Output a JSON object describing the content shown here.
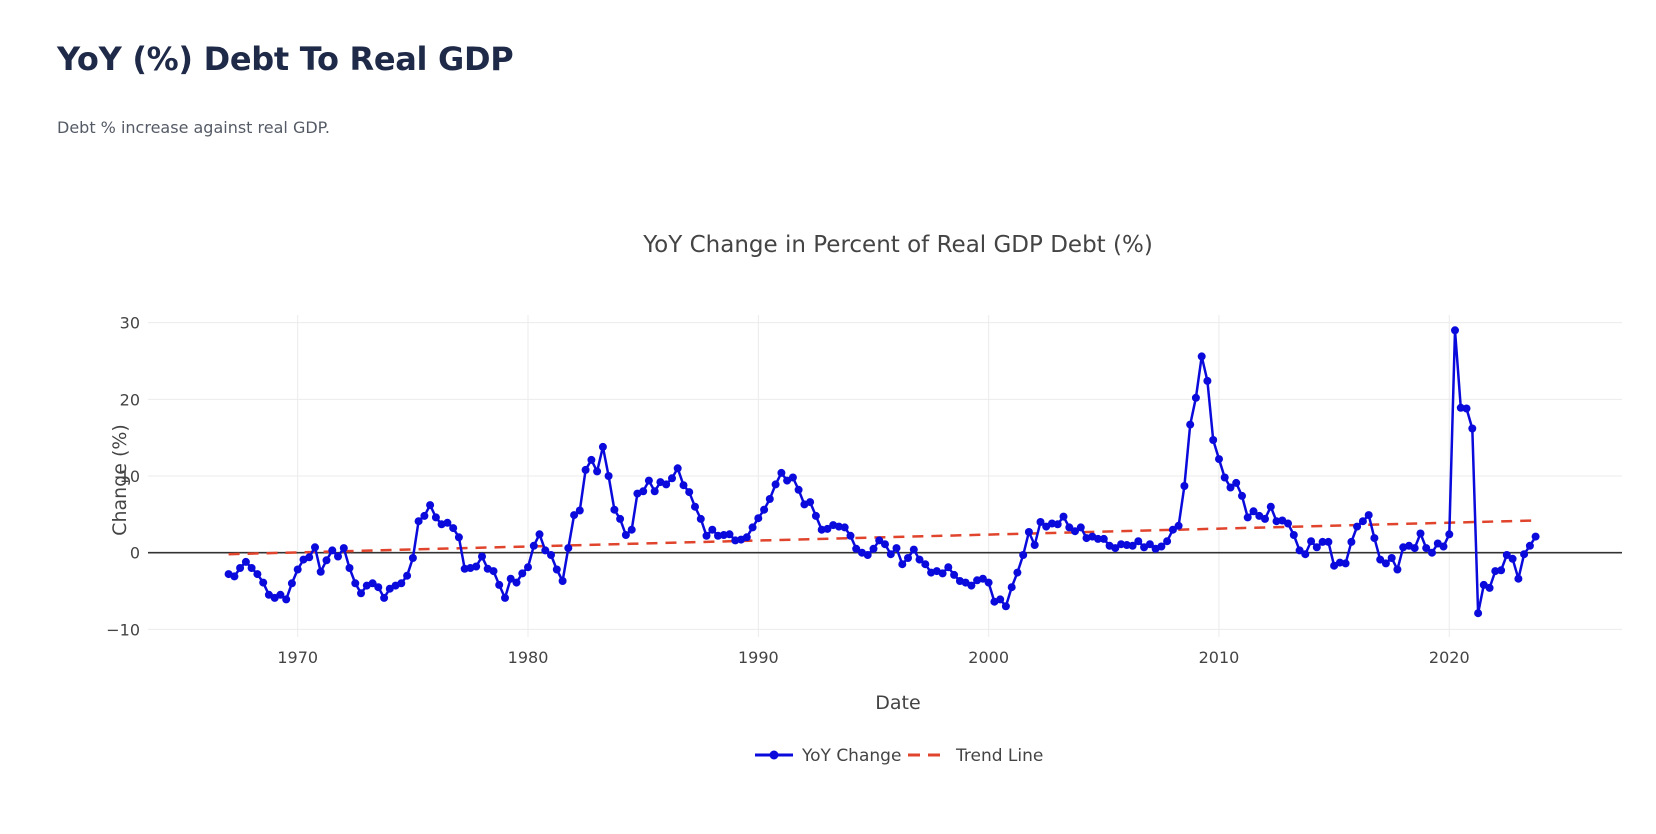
{
  "page": {
    "title": "YoY (%) Debt To Real GDP",
    "subtitle": "Debt % increase against real GDP."
  },
  "colors": {
    "series": "#0a0adc",
    "trend": "#e0442c",
    "grid": "#ebebeb",
    "zero_line": "#333333",
    "text": "#444444"
  },
  "chart_data": {
    "type": "line",
    "title": "YoY Change in Percent of Real GDP Debt (%)",
    "xlabel": "Date",
    "ylabel": "Change (%)",
    "xlim": [
      1963.5,
      2027.5
    ],
    "ylim": [
      -11,
      31
    ],
    "xticks": [
      1970,
      1980,
      1990,
      2000,
      2010,
      2020
    ],
    "yticks": [
      -10,
      0,
      10,
      20,
      30
    ],
    "grid": true,
    "legend_position": "bottom-center",
    "series": [
      {
        "name": "YoY Change",
        "style": "line+markers",
        "x": [
          1967.0,
          1967.25,
          1967.5,
          1967.75,
          1968.0,
          1968.25,
          1968.5,
          1968.75,
          1969.0,
          1969.25,
          1969.5,
          1969.75,
          1970.0,
          1970.25,
          1970.5,
          1970.75,
          1971.0,
          1971.25,
          1971.5,
          1971.75,
          1972.0,
          1972.25,
          1972.5,
          1972.75,
          1973.0,
          1973.25,
          1973.5,
          1973.75,
          1974.0,
          1974.25,
          1974.5,
          1974.75,
          1975.0,
          1975.25,
          1975.5,
          1975.75,
          1976.0,
          1976.25,
          1976.5,
          1976.75,
          1977.0,
          1977.25,
          1977.5,
          1977.75,
          1978.0,
          1978.25,
          1978.5,
          1978.75,
          1979.0,
          1979.25,
          1979.5,
          1979.75,
          1980.0,
          1980.25,
          1980.5,
          1980.75,
          1981.0,
          1981.25,
          1981.5,
          1981.75,
          1982.0,
          1982.25,
          1982.5,
          1982.75,
          1983.0,
          1983.25,
          1983.5,
          1983.75,
          1984.0,
          1984.25,
          1984.5,
          1984.75,
          1985.0,
          1985.25,
          1985.5,
          1985.75,
          1986.0,
          1986.25,
          1986.5,
          1986.75,
          1987.0,
          1987.25,
          1987.5,
          1987.75,
          1988.0,
          1988.25,
          1988.5,
          1988.75,
          1989.0,
          1989.25,
          1989.5,
          1989.75,
          1990.0,
          1990.25,
          1990.5,
          1990.75,
          1991.0,
          1991.25,
          1991.5,
          1991.75,
          1992.0,
          1992.25,
          1992.5,
          1992.75,
          1993.0,
          1993.25,
          1993.5,
          1993.75,
          1994.0,
          1994.25,
          1994.5,
          1994.75,
          1995.0,
          1995.25,
          1995.5,
          1995.75,
          1996.0,
          1996.25,
          1996.5,
          1996.75,
          1997.0,
          1997.25,
          1997.5,
          1997.75,
          1998.0,
          1998.25,
          1998.5,
          1998.75,
          1999.0,
          1999.25,
          1999.5,
          1999.75,
          2000.0,
          2000.25,
          2000.5,
          2000.75,
          2001.0,
          2001.25,
          2001.5,
          2001.75,
          2002.0,
          2002.25,
          2002.5,
          2002.75,
          2003.0,
          2003.25,
          2003.5,
          2003.75,
          2004.0,
          2004.25,
          2004.5,
          2004.75,
          2005.0,
          2005.25,
          2005.5,
          2005.75,
          2006.0,
          2006.25,
          2006.5,
          2006.75,
          2007.0,
          2007.25,
          2007.5,
          2007.75,
          2008.0,
          2008.25,
          2008.5,
          2008.75,
          2009.0,
          2009.25,
          2009.5,
          2009.75,
          2010.0,
          2010.25,
          2010.5,
          2010.75,
          2011.0,
          2011.25,
          2011.5,
          2011.75,
          2012.0,
          2012.25,
          2012.5,
          2012.75,
          2013.0,
          2013.25,
          2013.5,
          2013.75,
          2014.0,
          2014.25,
          2014.5,
          2014.75,
          2015.0,
          2015.25,
          2015.5,
          2015.75,
          2016.0,
          2016.25,
          2016.5,
          2016.75,
          2017.0,
          2017.25,
          2017.5,
          2017.75,
          2018.0,
          2018.25,
          2018.5,
          2018.75,
          2019.0,
          2019.25,
          2019.5,
          2019.75,
          2020.0,
          2020.25,
          2020.5,
          2020.75,
          2021.0,
          2021.25,
          2021.5,
          2021.75,
          2022.0,
          2022.25,
          2022.5,
          2022.75,
          2023.0,
          2023.25,
          2023.5,
          2023.75
        ],
        "y": [
          -2.8,
          -3.1,
          -2.0,
          -1.2,
          -2.0,
          -2.8,
          -3.9,
          -5.5,
          -5.9,
          -5.5,
          -6.1,
          -4.0,
          -2.2,
          -0.9,
          -0.6,
          0.7,
          -2.5,
          -1.0,
          0.3,
          -0.5,
          0.6,
          -2.0,
          -4.0,
          -5.3,
          -4.3,
          -4.0,
          -4.5,
          -5.9,
          -4.7,
          -4.3,
          -4.0,
          -3.0,
          -0.7,
          4.1,
          4.8,
          6.2,
          4.6,
          3.7,
          3.9,
          3.2,
          2.0,
          -2.1,
          -2.0,
          -1.8,
          -0.5,
          -2.1,
          -2.4,
          -4.2,
          -5.9,
          -3.4,
          -3.9,
          -2.7,
          -1.9,
          0.9,
          2.4,
          0.3,
          -0.3,
          -2.2,
          -3.7,
          0.6,
          4.9,
          5.5,
          10.8,
          12.1,
          10.6,
          13.8,
          10.0,
          5.6,
          4.4,
          2.3,
          3.0,
          7.7,
          8.0,
          9.4,
          8.0,
          9.2,
          8.9,
          9.7,
          11.0,
          8.8,
          7.9,
          6.0,
          4.4,
          2.2,
          3.0,
          2.2,
          2.3,
          2.4,
          1.6,
          1.7,
          2.0,
          3.3,
          4.5,
          5.6,
          7.0,
          8.9,
          10.4,
          9.4,
          9.8,
          8.2,
          6.3,
          6.6,
          4.8,
          3.0,
          3.1,
          3.6,
          3.4,
          3.3,
          2.2,
          0.5,
          0.0,
          -0.3,
          0.5,
          1.6,
          1.1,
          -0.2,
          0.6,
          -1.5,
          -0.7,
          0.4,
          -0.9,
          -1.5,
          -2.6,
          -2.4,
          -2.7,
          -1.9,
          -2.9,
          -3.7,
          -3.9,
          -4.3,
          -3.6,
          -3.4,
          -3.9,
          -6.4,
          -6.1,
          -7.0,
          -4.5,
          -2.6,
          -0.3,
          2.7,
          1.0,
          4.0,
          3.4,
          3.8,
          3.7,
          4.7,
          3.3,
          2.8,
          3.3,
          1.9,
          2.1,
          1.8,
          1.8,
          0.9,
          0.6,
          1.1,
          1.0,
          0.9,
          1.5,
          0.7,
          1.1,
          0.5,
          0.8,
          1.5,
          3.0,
          3.5,
          8.7,
          16.7,
          20.2,
          25.6,
          22.4,
          14.7,
          12.2,
          9.8,
          8.5,
          9.1,
          7.4,
          4.6,
          5.4,
          4.8,
          4.4,
          6.0,
          4.1,
          4.2,
          3.8,
          2.3,
          0.3,
          -0.2,
          1.5,
          0.7,
          1.4,
          1.4,
          -1.7,
          -1.3,
          -1.4,
          1.4,
          3.4,
          4.1,
          4.9,
          1.9,
          -0.9,
          -1.4,
          -0.7,
          -2.2,
          0.7,
          0.9,
          0.6,
          2.5,
          0.6,
          0.0,
          1.2,
          0.8,
          2.4,
          29.0,
          18.9,
          18.8,
          16.2,
          -7.9,
          -4.2,
          -4.6,
          -2.4,
          -2.3,
          -0.3,
          -0.8,
          -3.4,
          -0.2,
          0.9,
          2.1
        ]
      },
      {
        "name": "Trend Line",
        "style": "dashed",
        "x": [
          1967.0,
          2023.75
        ],
        "y": [
          -0.2,
          4.2
        ]
      }
    ]
  }
}
